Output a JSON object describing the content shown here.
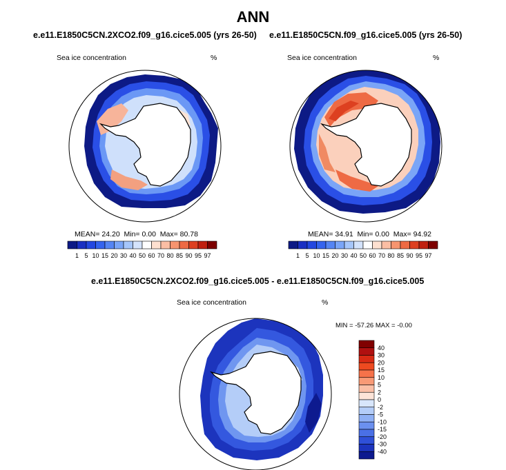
{
  "figure": {
    "title": "ANN"
  },
  "panels": [
    {
      "title": "e.e11.E1850C5CN.2XCO2.f09_g16.cice5.005 (yrs 26-50)",
      "variable": "Sea ice concentration",
      "units": "%",
      "stats": {
        "mean_label": "MEAN=",
        "mean": "24.20",
        "min_label": "Min=",
        "min": "0.00",
        "max_label": "Max=",
        "max": "80.78"
      }
    },
    {
      "title": "e.e11.E1850C5CN.f09_g16.cice5.005 (yrs 26-50)",
      "variable": "Sea ice concentration",
      "units": "%",
      "stats": {
        "mean_label": "MEAN=",
        "mean": "34.91",
        "min_label": "Min=",
        "min": "0.00",
        "max_label": "Max=",
        "max": "94.92"
      }
    },
    {
      "title": "e.e11.E1850C5CN.2XCO2.f09_g16.cice5.005 - e.e11.E1850C5CN.f09_g16.cice5.005",
      "variable": "Sea ice concentration",
      "units": "%",
      "stats_text": "MIN = -57.26 MAX = -0.00"
    }
  ],
  "chart_data": [
    {
      "type": "heatmap",
      "projection": "south-polar-stereographic",
      "title": "e.e11.E1850C5CN.2XCO2.f09_g16.cice5.005 (yrs 26-50)",
      "variable": "Sea ice concentration",
      "units": "%",
      "mean": 24.2,
      "min": 0.0,
      "max": 80.78,
      "colorbar": {
        "orientation": "horizontal",
        "levels": [
          "1",
          "5",
          "10",
          "15",
          "20",
          "30",
          "40",
          "50",
          "60",
          "70",
          "80",
          "85",
          "90",
          "95",
          "97"
        ],
        "colors": [
          "#0d1a85",
          "#1a30c2",
          "#2448e0",
          "#3564ee",
          "#5585f3",
          "#7aa5f7",
          "#a6c6fa",
          "#d4e3fc",
          "#ffffff",
          "#fde0d0",
          "#fbbea4",
          "#f6946f",
          "#ee6a44",
          "#dd4020",
          "#c02010",
          "#7d0000"
        ]
      }
    },
    {
      "type": "heatmap",
      "projection": "south-polar-stereographic",
      "title": "e.e11.E1850C5CN.f09_g16.cice5.005 (yrs 26-50)",
      "variable": "Sea ice concentration",
      "units": "%",
      "mean": 34.91,
      "min": 0.0,
      "max": 94.92,
      "colorbar": {
        "orientation": "horizontal",
        "levels": [
          "1",
          "5",
          "10",
          "15",
          "20",
          "30",
          "40",
          "50",
          "60",
          "70",
          "80",
          "85",
          "90",
          "95",
          "97"
        ],
        "colors": [
          "#0d1a85",
          "#1a30c2",
          "#2448e0",
          "#3564ee",
          "#5585f3",
          "#7aa5f7",
          "#a6c6fa",
          "#d4e3fc",
          "#ffffff",
          "#fde0d0",
          "#fbbea4",
          "#f6946f",
          "#ee6a44",
          "#dd4020",
          "#c02010",
          "#7d0000"
        ]
      }
    },
    {
      "type": "heatmap",
      "projection": "south-polar-stereographic",
      "title": "e.e11.E1850C5CN.2XCO2.f09_g16.cice5.005 - e.e11.E1850C5CN.f09_g16.cice5.005",
      "variable": "Sea ice concentration",
      "units": "%",
      "min": -57.26,
      "max": -0.0,
      "colorbar": {
        "orientation": "vertical",
        "levels": [
          "40",
          "30",
          "20",
          "15",
          "10",
          "5",
          "2",
          "0",
          "-2",
          "-5",
          "-10",
          "-15",
          "-20",
          "-30",
          "-40"
        ],
        "colors": [
          "#800000",
          "#b01010",
          "#d82a14",
          "#ee4a20",
          "#f6724a",
          "#f99a76",
          "#fbbfa6",
          "#fde4d8",
          "#d8e6fb",
          "#b4cdf8",
          "#8fb0f4",
          "#6b90ef",
          "#4a70e6",
          "#2f50d8",
          "#1c34bd",
          "#0d1a8f"
        ]
      }
    }
  ]
}
